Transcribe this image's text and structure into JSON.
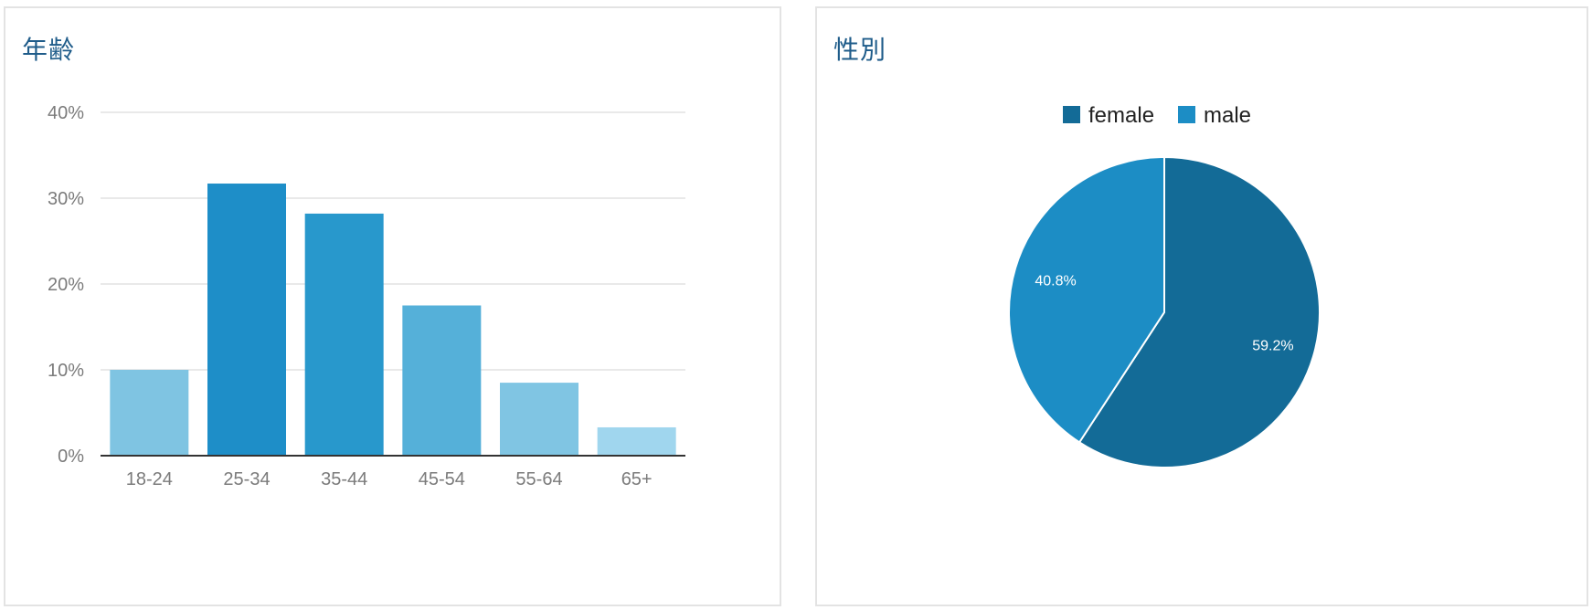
{
  "panels": {
    "age": {
      "title": "年齢"
    },
    "gender": {
      "title": "性別"
    }
  },
  "chart_data": [
    {
      "type": "bar",
      "title": "年齢",
      "categories": [
        "18-24",
        "25-34",
        "35-44",
        "45-54",
        "55-64",
        "65+"
      ],
      "values": [
        10.0,
        31.7,
        28.2,
        17.5,
        8.5,
        3.3
      ],
      "unit": "%",
      "ylim": [
        0,
        40
      ],
      "yticks": [
        0,
        10,
        20,
        30,
        40
      ],
      "ytick_labels": [
        "0%",
        "10%",
        "20%",
        "30%",
        "40%"
      ],
      "grid": true,
      "bar_colors": [
        "#7fc4e2",
        "#1e8ec8",
        "#2898cc",
        "#55b0d9",
        "#80c5e3",
        "#a0d6ee"
      ]
    },
    {
      "type": "pie",
      "title": "性別",
      "labels": [
        "female",
        "male"
      ],
      "values": [
        59.2,
        40.8
      ],
      "value_labels": [
        "59.2%",
        "40.8%"
      ],
      "colors": [
        "#136b97",
        "#1c8dc5"
      ],
      "legend": "top-center"
    }
  ]
}
